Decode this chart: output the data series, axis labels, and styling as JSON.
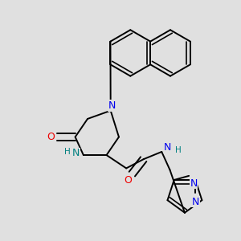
{
  "background_color": "#e0e0e0",
  "atom_colors": {
    "N": "#0000ee",
    "O": "#ee0000",
    "NH": "#008080",
    "C": "#000000"
  },
  "bond_color": "#000000",
  "bond_width": 1.4,
  "figsize": [
    3.0,
    3.0
  ],
  "dpi": 100
}
